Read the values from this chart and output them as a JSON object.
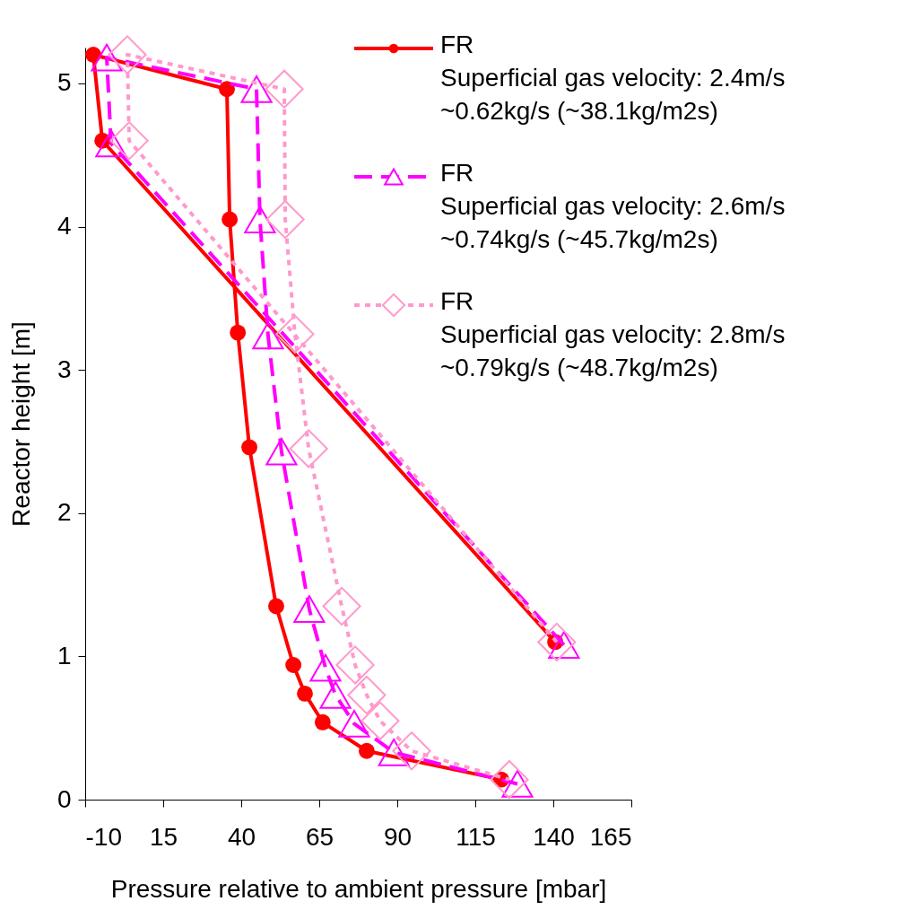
{
  "chart_data": {
    "type": "line",
    "xlabel": "Pressure relative to ambient pressure [mbar]",
    "ylabel": "Reactor height [m]",
    "xlim": [
      -10,
      165
    ],
    "xticks": [
      -10,
      15,
      40,
      65,
      90,
      115,
      140,
      165
    ],
    "ylim": [
      0,
      5.25
    ],
    "yticks": [
      {
        "value": 0,
        "label": "0"
      },
      {
        "value": 1,
        "label": "1"
      },
      {
        "value": 2,
        "label": "2"
      },
      {
        "value": 3,
        "label": "3"
      },
      {
        "value": 4,
        "label": "4"
      },
      {
        "value": 5,
        "label": "5"
      }
    ],
    "grid": false,
    "legend": "top right",
    "series": [
      {
        "name": "FR\nSuperficial gas velocity: 2.4m/s\n~0.62kg/s (~38.1kg/m2s)",
        "color": "#ff0000",
        "marker": "circle",
        "line_style": "solid",
        "x": [
          140.6,
          -4.5,
          -7.4,
          35.4,
          36.3,
          38.9,
          42.6,
          51.2,
          56.7,
          60.4,
          66.1,
          80.2,
          123.3
        ],
        "values": [
          1.1,
          4.6,
          5.2,
          4.96,
          4.05,
          3.26,
          2.46,
          1.35,
          0.94,
          0.74,
          0.54,
          0.34,
          0.14
        ]
      },
      {
        "name": "FR\nSuperficial gas velocity: 2.6m/s\n~0.74kg/s (~45.7kg/m2s)",
        "color": "#ff00ff",
        "marker": "triangle",
        "line_style": "dashed",
        "x": [
          143.4,
          -1.7,
          -3.1,
          44.9,
          46.0,
          48.6,
          52.9,
          61.8,
          67.0,
          70.2,
          76.2,
          88.9,
          128.5
        ],
        "values": [
          1.08,
          4.58,
          5.18,
          4.96,
          4.05,
          3.24,
          2.43,
          1.33,
          0.92,
          0.73,
          0.53,
          0.33,
          0.11
        ]
      },
      {
        "name": "FR\nSuperficial gas velocity: 2.8m/s\n~0.79kg/s (~48.7kg/m2s)",
        "color": "#ff99cc",
        "marker": "diamond",
        "line_style": "dotted",
        "x": [
          141.1,
          4.1,
          3.5,
          53.8,
          54.1,
          57.2,
          61.6,
          72.2,
          76.5,
          80.2,
          84.5,
          94.6,
          125.9
        ],
        "values": [
          1.1,
          4.6,
          5.2,
          4.96,
          4.05,
          3.25,
          2.45,
          1.35,
          0.94,
          0.73,
          0.55,
          0.34,
          0.14
        ]
      }
    ]
  }
}
